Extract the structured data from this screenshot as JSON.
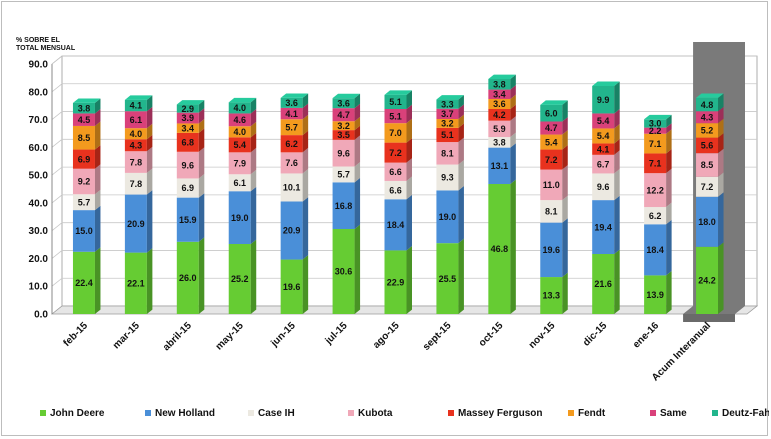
{
  "chart_data": {
    "type": "bar",
    "stacked": true,
    "ylabel": [
      "% SOBRE EL",
      "TOTAL MENSUAL"
    ],
    "ylim": [
      0,
      90
    ],
    "yticks": [
      "0.0",
      "10.0",
      "20.0",
      "30.0",
      "40.0",
      "50.0",
      "60.0",
      "70.0",
      "80.0",
      "90.0"
    ],
    "grid": true,
    "legend_position": "bottom",
    "categories": [
      "feb-15",
      "mar-15",
      "abril-15",
      "may-15",
      "jun-15",
      "jul-15",
      "ago-15",
      "sept-15",
      "oct-15",
      "nov-15",
      "dic-15",
      "ene-16",
      "Acum Interanual"
    ],
    "series": [
      {
        "name": "John Deere",
        "color": "#66cc33",
        "values": [
          22.4,
          22.1,
          26.0,
          25.2,
          19.6,
          30.6,
          22.9,
          25.5,
          46.8,
          13.3,
          21.6,
          13.9,
          24.2
        ]
      },
      {
        "name": "New Holland",
        "color": "#4a8fd8",
        "values": [
          15.0,
          20.9,
          15.9,
          19.0,
          20.9,
          16.8,
          18.4,
          19.0,
          13.1,
          19.6,
          19.4,
          18.4,
          18.0
        ]
      },
      {
        "name": "Case IH",
        "color": "#ece9e1",
        "values": [
          5.7,
          7.8,
          6.9,
          6.1,
          10.1,
          5.7,
          6.6,
          9.3,
          3.8,
          8.1,
          9.6,
          6.2,
          7.2
        ]
      },
      {
        "name": "Kubota",
        "color": "#f0a8b8",
        "values": [
          9.2,
          7.8,
          9.6,
          7.9,
          7.6,
          9.6,
          6.6,
          8.1,
          5.9,
          11.0,
          6.7,
          12.2,
          8.5
        ]
      },
      {
        "name": "Massey Ferguson",
        "color": "#e8321e",
        "values": [
          6.9,
          4.3,
          6.8,
          5.4,
          6.2,
          3.5,
          7.2,
          5.1,
          4.2,
          7.2,
          4.1,
          7.1,
          5.6
        ]
      },
      {
        "name": "Fendt",
        "color": "#f39a1e",
        "values": [
          8.5,
          4.0,
          3.4,
          4.0,
          5.7,
          3.2,
          7.0,
          3.2,
          3.6,
          5.4,
          5.4,
          7.1,
          5.2
        ]
      },
      {
        "name": "Same",
        "color": "#d9417a",
        "values": [
          4.5,
          6.1,
          3.9,
          4.6,
          4.1,
          4.7,
          5.1,
          3.7,
          3.4,
          4.7,
          5.4,
          2.2,
          4.3
        ]
      },
      {
        "name": "Deutz-Fahr",
        "color": "#22b58c",
        "values": [
          3.8,
          4.1,
          2.9,
          4.0,
          3.6,
          3.6,
          5.1,
          3.3,
          3.8,
          6.0,
          9.9,
          3.0,
          4.8
        ]
      }
    ],
    "data_labels": [
      [
        "22.4",
        "15.0",
        "5.7",
        "9.2",
        "6.9",
        "8.5",
        "4.5",
        "3.8"
      ],
      [
        "22.1",
        "20.9",
        "7.8",
        "7.8",
        "4.3",
        "4.0",
        "6.1",
        "4.1"
      ],
      [
        "26.0",
        "15.9",
        "6.9",
        "9.6",
        "6.8",
        "3.4",
        "3.9",
        "2.9"
      ],
      [
        "25.2",
        "19.0",
        "6.1",
        "7.9",
        "5.4",
        "4.0",
        "4.6",
        "4.0"
      ],
      [
        "19.6",
        "20.9",
        "10.1",
        "7.6",
        "6.2",
        "5.7",
        "4.1",
        "3.6"
      ],
      [
        "30.6",
        "16.8",
        "5.7",
        "9.6",
        "3.5",
        "3.2",
        "4.7",
        "3.6"
      ],
      [
        "22.9",
        "18.4",
        "6.6",
        "6.6",
        "7.2",
        "7.0",
        "5.1",
        "5.1"
      ],
      [
        "25.5",
        "19.0",
        "9.3",
        "8.1",
        "5.1",
        "3.2",
        "3.7",
        "3.3"
      ],
      [
        "46.8",
        "13.1",
        "3.8",
        "5.9",
        "4.2",
        "3.6",
        "3.4",
        "3.8"
      ],
      [
        "13.3",
        "19.6",
        "8.1",
        "11.0",
        "7.2",
        "5.4",
        "4.7",
        "6.0"
      ],
      [
        "21.6",
        "19.4",
        "9.6",
        "6.7",
        "4.1",
        "5.4",
        "5.4",
        "9.9"
      ],
      [
        "13.9",
        "18.4",
        "6.2",
        "12.2",
        "7.1",
        "7.1",
        "2.2",
        "3.0"
      ],
      [
        "24.2",
        "18.0",
        "7.2",
        "8.5",
        "5.6",
        "5.2",
        "4.3",
        "4.8"
      ]
    ]
  }
}
